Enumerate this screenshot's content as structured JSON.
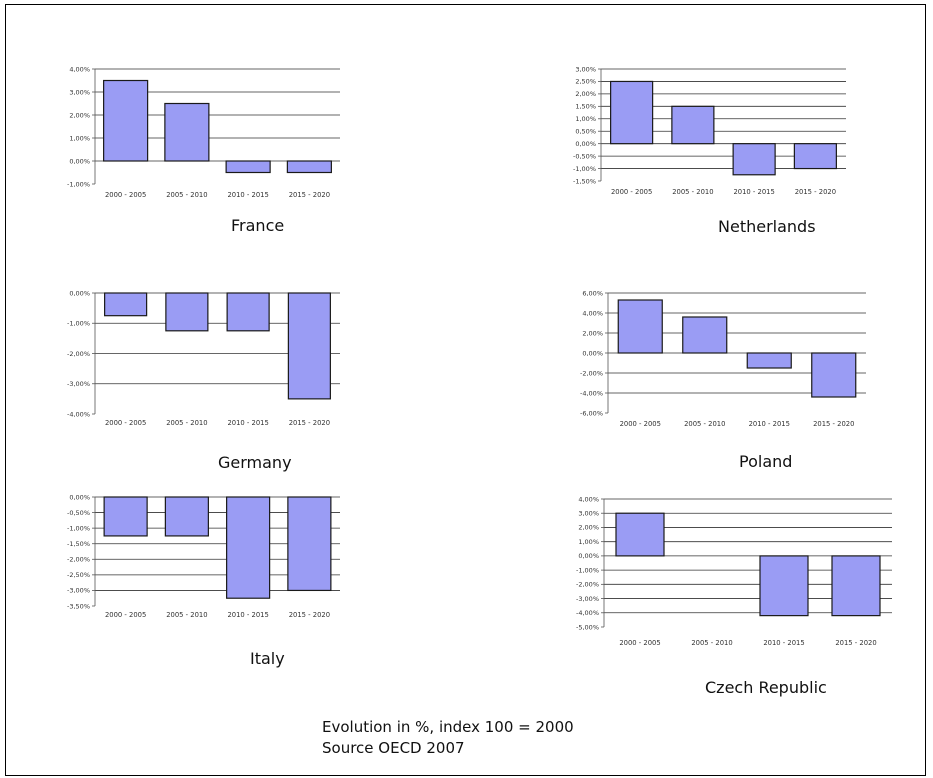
{
  "colors": {
    "bar_fill": "#9a9cf4",
    "bar_stroke": "#1a1a1a",
    "gridline": "#333333",
    "axis": "#555555"
  },
  "footer": {
    "line1": "Evolution in %, index 100 = 2000",
    "line2": "Source OECD 2007"
  },
  "chart_data": [
    {
      "type": "bar",
      "title": "France",
      "categories": [
        "2000 - 2005",
        "2005 - 2010",
        "2010 - 2015",
        "2015 - 2020"
      ],
      "values": [
        3.5,
        2.5,
        -0.5,
        -0.5
      ],
      "ylim": [
        -1,
        4
      ],
      "yticks": [
        4,
        3,
        2,
        1,
        0,
        -1
      ],
      "ytick_labels": [
        "4,00%",
        "3,00%",
        "2,00%",
        "1,00%",
        "0,00%",
        "-1,00%"
      ]
    },
    {
      "type": "bar",
      "title": "Netherlands",
      "categories": [
        "2000 - 2005",
        "2005 - 2010",
        "2010 - 2015",
        "2015 - 2020"
      ],
      "values": [
        2.5,
        1.5,
        -1.25,
        -1.0
      ],
      "ylim": [
        -1.5,
        3
      ],
      "yticks": [
        3,
        2.5,
        2,
        1.5,
        1,
        0.5,
        0,
        -0.5,
        -1,
        -1.5
      ],
      "ytick_labels": [
        "3,00%",
        "2,50%",
        "2,00%",
        "1,50%",
        "1,00%",
        "0,50%",
        "0,00%",
        "-0,50%",
        "-1,00%",
        "-1,50%"
      ]
    },
    {
      "type": "bar",
      "title": "Germany",
      "categories": [
        "2000 - 2005",
        "2005 - 2010",
        "2010 - 2015",
        "2015 - 2020"
      ],
      "values": [
        -0.75,
        -1.25,
        -1.25,
        -3.5
      ],
      "ylim": [
        -4,
        0
      ],
      "yticks": [
        0,
        -1,
        -2,
        -3,
        -4
      ],
      "ytick_labels": [
        "0,00%",
        "-1,00%",
        "-2,00%",
        "-3,00%",
        "-4,00%"
      ]
    },
    {
      "type": "bar",
      "title": "Poland",
      "categories": [
        "2000 - 2005",
        "2005 - 2010",
        "2010 - 2015",
        "2015 - 2020"
      ],
      "values": [
        5.3,
        3.6,
        -1.5,
        -4.4
      ],
      "ylim": [
        -6,
        6
      ],
      "yticks": [
        6,
        4,
        2,
        0,
        -2,
        -4,
        -6
      ],
      "ytick_labels": [
        "6,00%",
        "4,00%",
        "2,00%",
        "0,00%",
        "-2,00%",
        "-4,00%",
        "-6,00%"
      ]
    },
    {
      "type": "bar",
      "title": "Italy",
      "categories": [
        "2000 - 2005",
        "2005 - 2010",
        "2010 - 2015",
        "2015 - 2020"
      ],
      "values": [
        -1.25,
        -1.25,
        -3.25,
        -3.0
      ],
      "ylim": [
        -3.5,
        0
      ],
      "yticks": [
        0,
        -0.5,
        -1,
        -1.5,
        -2,
        -2.5,
        -3,
        -3.5
      ],
      "ytick_labels": [
        "0,00%",
        "-0,50%",
        "-1,00%",
        "-1,50%",
        "-2,00%",
        "-2,50%",
        "-3,00%",
        "-3,50%"
      ]
    },
    {
      "type": "bar",
      "title": "Czech Republic",
      "categories": [
        "2000 - 2005",
        "2005 - 2010",
        "2010 - 2015",
        "2015 - 2020"
      ],
      "values": [
        3.0,
        0,
        -4.2,
        -4.2
      ],
      "ylim": [
        -5,
        4
      ],
      "yticks": [
        4,
        3,
        2,
        1,
        0,
        -1,
        -2,
        -3,
        -4,
        -5
      ],
      "ytick_labels": [
        "4,00%",
        "3,00%",
        "2,00%",
        "1,00%",
        "0,00%",
        "-1,00%",
        "-2,00%",
        "-3,00%",
        "-4,00%",
        "-5,00%"
      ]
    }
  ]
}
